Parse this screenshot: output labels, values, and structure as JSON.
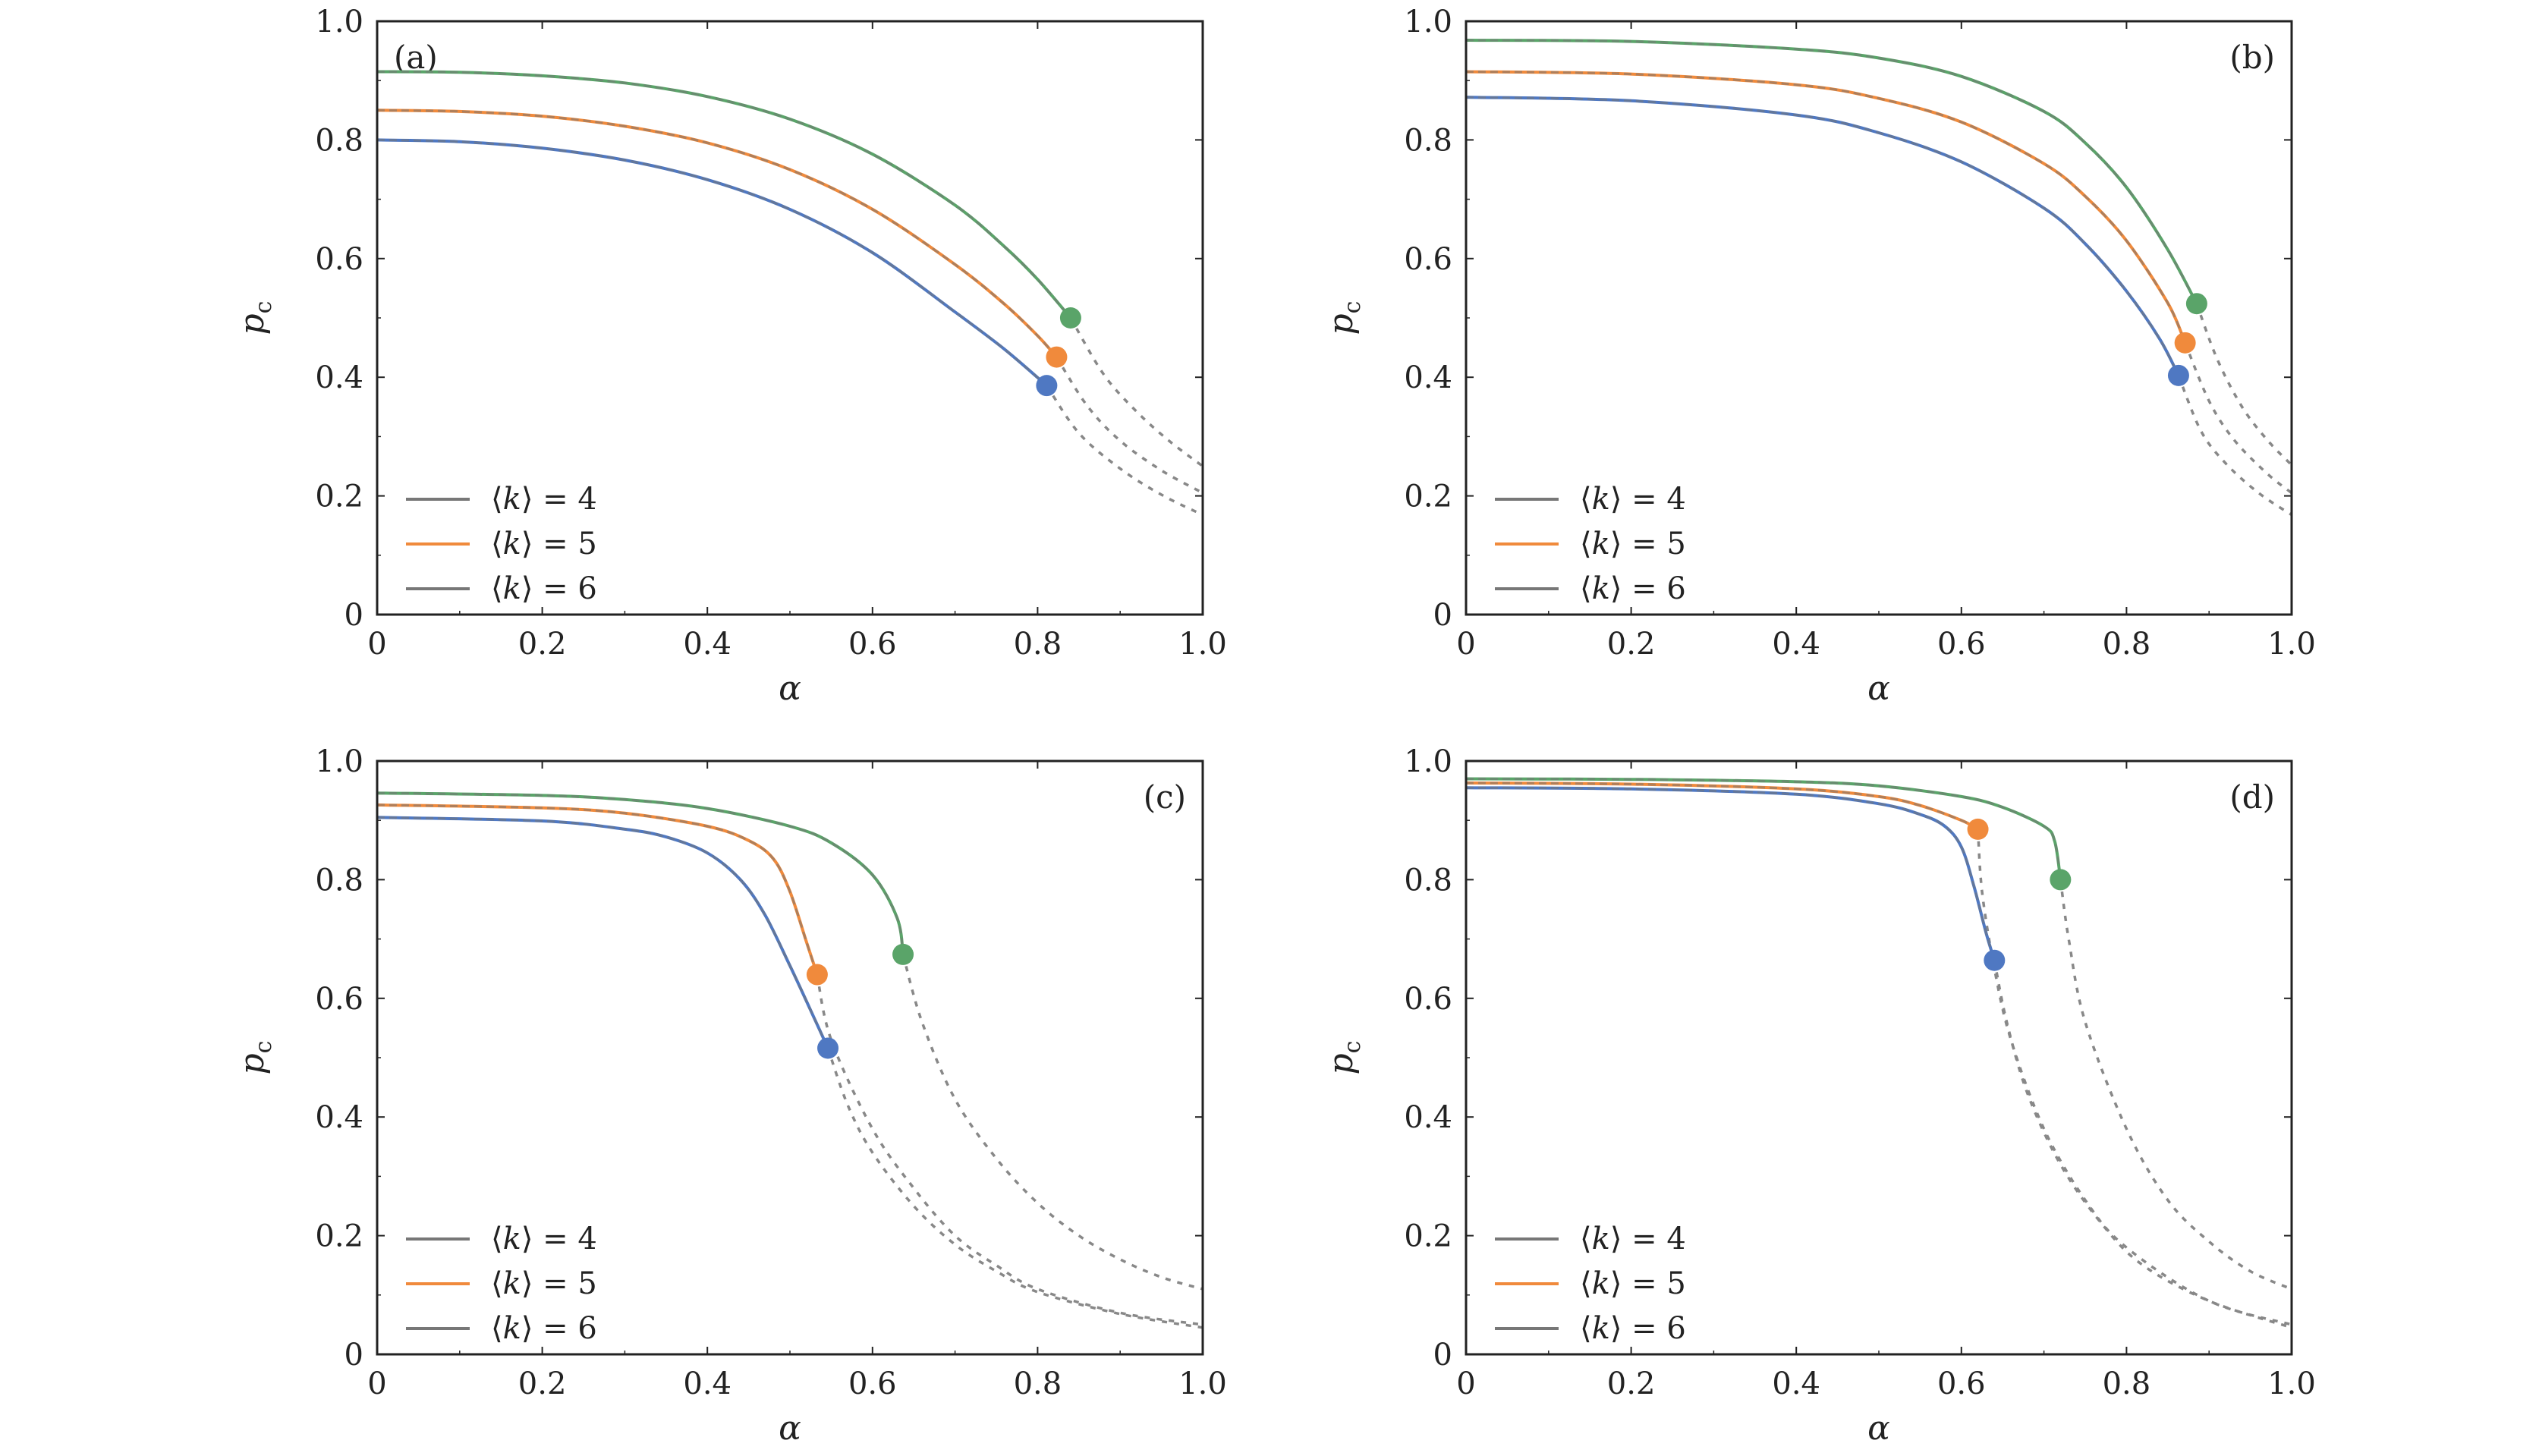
{
  "figure": {
    "legend_entries": [
      "⟨k⟩ = 4",
      "⟨k⟩ = 5",
      "⟨k⟩ = 6"
    ],
    "series_colors": {
      "k4": "#5aa469",
      "k5": "#f08a3c",
      "k6": "#4f78c2"
    },
    "line_color": "#777777",
    "dashed_color": "#888888"
  },
  "chart_data": [
    {
      "panel": "(a)",
      "type": "line",
      "xlabel": "α",
      "ylabel": "p_c",
      "xlim": [
        0,
        1
      ],
      "ylim": [
        0,
        1
      ],
      "x_ticks": [
        "0",
        "0.2",
        "0.4",
        "0.6",
        "0.8",
        "1.0"
      ],
      "y_ticks": [
        "0",
        "0.2",
        "0.4",
        "0.6",
        "0.8",
        "1.0"
      ],
      "legend_position": "bottom-left",
      "grid": false,
      "series": [
        {
          "name": "⟨k⟩ = 4",
          "color": "green",
          "solid": [
            [
              0,
              0.915
            ],
            [
              0.1,
              0.914
            ],
            [
              0.2,
              0.908
            ],
            [
              0.3,
              0.896
            ],
            [
              0.4,
              0.873
            ],
            [
              0.5,
              0.835
            ],
            [
              0.6,
              0.776
            ],
            [
              0.7,
              0.69
            ],
            [
              0.76,
              0.62
            ],
            [
              0.8,
              0.565
            ],
            [
              0.84,
              0.5
            ]
          ],
          "critical_point": [
            0.84,
            0.5
          ],
          "dashed": [
            [
              0.84,
              0.5
            ],
            [
              0.88,
              0.405
            ],
            [
              0.92,
              0.342
            ],
            [
              0.96,
              0.292
            ],
            [
              1.0,
              0.25
            ]
          ]
        },
        {
          "name": "⟨k⟩ = 5",
          "color": "orange",
          "solid": [
            [
              0,
              0.85
            ],
            [
              0.1,
              0.848
            ],
            [
              0.2,
              0.84
            ],
            [
              0.3,
              0.823
            ],
            [
              0.4,
              0.795
            ],
            [
              0.5,
              0.75
            ],
            [
              0.6,
              0.683
            ],
            [
              0.7,
              0.59
            ],
            [
              0.76,
              0.523
            ],
            [
              0.8,
              0.47
            ],
            [
              0.823,
              0.434
            ]
          ],
          "critical_point": [
            0.823,
            0.434
          ],
          "dashed": [
            [
              0.823,
              0.434
            ],
            [
              0.86,
              0.352
            ],
            [
              0.9,
              0.293
            ],
            [
              0.95,
              0.243
            ],
            [
              1.0,
              0.205
            ]
          ]
        },
        {
          "name": "⟨k⟩ = 6",
          "color": "blue",
          "solid": [
            [
              0,
              0.8
            ],
            [
              0.1,
              0.797
            ],
            [
              0.2,
              0.786
            ],
            [
              0.3,
              0.766
            ],
            [
              0.4,
              0.733
            ],
            [
              0.5,
              0.683
            ],
            [
              0.6,
              0.61
            ],
            [
              0.7,
              0.51
            ],
            [
              0.76,
              0.447
            ],
            [
              0.811,
              0.386
            ]
          ],
          "critical_point": [
            0.811,
            0.386
          ],
          "dashed": [
            [
              0.811,
              0.386
            ],
            [
              0.85,
              0.306
            ],
            [
              0.9,
              0.246
            ],
            [
              0.95,
              0.202
            ],
            [
              1.0,
              0.168
            ]
          ]
        }
      ]
    },
    {
      "panel": "(b)",
      "type": "line",
      "xlabel": "α",
      "ylabel": "p_c",
      "xlim": [
        0,
        1
      ],
      "ylim": [
        0,
        1
      ],
      "x_ticks": [
        "0",
        "0.2",
        "0.4",
        "0.6",
        "0.8",
        "1.0"
      ],
      "y_ticks": [
        "0",
        "0.2",
        "0.4",
        "0.6",
        "0.8",
        "1.0"
      ],
      "legend_position": "bottom-left",
      "grid": false,
      "series": [
        {
          "name": "⟨k⟩ = 4",
          "color": "green",
          "solid": [
            [
              0,
              0.968
            ],
            [
              0.2,
              0.966
            ],
            [
              0.4,
              0.953
            ],
            [
              0.5,
              0.938
            ],
            [
              0.6,
              0.907
            ],
            [
              0.7,
              0.848
            ],
            [
              0.75,
              0.795
            ],
            [
              0.8,
              0.72
            ],
            [
              0.85,
              0.615
            ],
            [
              0.885,
              0.524
            ]
          ],
          "critical_point": [
            0.885,
            0.524
          ],
          "dashed": [
            [
              0.885,
              0.524
            ],
            [
              0.91,
              0.43
            ],
            [
              0.94,
              0.35
            ],
            [
              0.97,
              0.295
            ],
            [
              1.0,
              0.252
            ]
          ]
        },
        {
          "name": "⟨k⟩ = 5",
          "color": "orange",
          "solid": [
            [
              0,
              0.915
            ],
            [
              0.2,
              0.911
            ],
            [
              0.4,
              0.893
            ],
            [
              0.5,
              0.87
            ],
            [
              0.6,
              0.83
            ],
            [
              0.7,
              0.76
            ],
            [
              0.75,
              0.705
            ],
            [
              0.8,
              0.63
            ],
            [
              0.85,
              0.525
            ],
            [
              0.871,
              0.458
            ]
          ],
          "critical_point": [
            0.871,
            0.458
          ],
          "dashed": [
            [
              0.871,
              0.458
            ],
            [
              0.9,
              0.36
            ],
            [
              0.93,
              0.295
            ],
            [
              0.97,
              0.238
            ],
            [
              1.0,
              0.205
            ]
          ]
        },
        {
          "name": "⟨k⟩ = 6",
          "color": "blue",
          "solid": [
            [
              0,
              0.872
            ],
            [
              0.2,
              0.866
            ],
            [
              0.4,
              0.842
            ],
            [
              0.5,
              0.812
            ],
            [
              0.6,
              0.763
            ],
            [
              0.7,
              0.685
            ],
            [
              0.75,
              0.625
            ],
            [
              0.8,
              0.545
            ],
            [
              0.84,
              0.465
            ],
            [
              0.863,
              0.403
            ]
          ],
          "critical_point": [
            0.863,
            0.403
          ],
          "dashed": [
            [
              0.863,
              0.403
            ],
            [
              0.89,
              0.31
            ],
            [
              0.92,
              0.255
            ],
            [
              0.96,
              0.205
            ],
            [
              1.0,
              0.168
            ]
          ]
        }
      ]
    },
    {
      "panel": "(c)",
      "type": "line",
      "xlabel": "α",
      "ylabel": "p_c",
      "xlim": [
        0,
        1
      ],
      "ylim": [
        0,
        1
      ],
      "x_ticks": [
        "0",
        "0.2",
        "0.4",
        "0.6",
        "0.8",
        "1.0"
      ],
      "y_ticks": [
        "0",
        "0.2",
        "0.4",
        "0.6",
        "0.8",
        "1.0"
      ],
      "legend_position": "bottom-left",
      "grid": false,
      "series": [
        {
          "name": "⟨k⟩ = 4",
          "color": "green",
          "solid": [
            [
              0,
              0.946
            ],
            [
              0.2,
              0.942
            ],
            [
              0.3,
              0.935
            ],
            [
              0.4,
              0.92
            ],
            [
              0.5,
              0.89
            ],
            [
              0.55,
              0.862
            ],
            [
              0.6,
              0.808
            ],
            [
              0.63,
              0.735
            ],
            [
              0.637,
              0.674
            ]
          ],
          "critical_point": [
            0.637,
            0.674
          ],
          "dashed": [
            [
              0.637,
              0.674
            ],
            [
              0.66,
              0.56
            ],
            [
              0.7,
              0.43
            ],
            [
              0.75,
              0.33
            ],
            [
              0.8,
              0.255
            ],
            [
              0.85,
              0.2
            ],
            [
              0.9,
              0.16
            ],
            [
              0.95,
              0.13
            ],
            [
              1.0,
              0.11
            ]
          ]
        },
        {
          "name": "⟨k⟩ = 5",
          "color": "orange",
          "solid": [
            [
              0,
              0.926
            ],
            [
              0.2,
              0.921
            ],
            [
              0.3,
              0.912
            ],
            [
              0.4,
              0.89
            ],
            [
              0.45,
              0.866
            ],
            [
              0.48,
              0.835
            ],
            [
              0.5,
              0.78
            ],
            [
              0.52,
              0.695
            ],
            [
              0.533,
              0.64
            ]
          ],
          "critical_point": [
            0.533,
            0.64
          ],
          "dashed": [
            [
              0.533,
              0.64
            ],
            [
              0.55,
              0.53
            ],
            [
              0.6,
              0.38
            ],
            [
              0.65,
              0.28
            ],
            [
              0.7,
              0.2
            ],
            [
              0.75,
              0.15
            ],
            [
              0.8,
              0.11
            ],
            [
              0.9,
              0.07
            ],
            [
              1.0,
              0.05
            ]
          ]
        },
        {
          "name": "⟨k⟩ = 6",
          "color": "blue",
          "solid": [
            [
              0,
              0.905
            ],
            [
              0.2,
              0.899
            ],
            [
              0.3,
              0.885
            ],
            [
              0.35,
              0.872
            ],
            [
              0.4,
              0.845
            ],
            [
              0.44,
              0.8
            ],
            [
              0.47,
              0.74
            ],
            [
              0.5,
              0.655
            ],
            [
              0.53,
              0.565
            ],
            [
              0.546,
              0.516
            ]
          ],
          "critical_point": [
            0.546,
            0.516
          ],
          "dashed": [
            [
              0.546,
              0.516
            ],
            [
              0.57,
              0.42
            ],
            [
              0.6,
              0.34
            ],
            [
              0.65,
              0.25
            ],
            [
              0.7,
              0.185
            ],
            [
              0.75,
              0.14
            ],
            [
              0.8,
              0.105
            ],
            [
              0.9,
              0.068
            ],
            [
              1.0,
              0.045
            ]
          ]
        }
      ]
    },
    {
      "panel": "(d)",
      "type": "line",
      "xlabel": "α",
      "ylabel": "p_c",
      "xlim": [
        0,
        1
      ],
      "ylim": [
        0,
        1
      ],
      "x_ticks": [
        "0",
        "0.2",
        "0.4",
        "0.6",
        "0.8",
        "1.0"
      ],
      "y_ticks": [
        "0",
        "0.2",
        "0.4",
        "0.6",
        "0.8",
        "1.0"
      ],
      "legend_position": "bottom-left",
      "grid": false,
      "series": [
        {
          "name": "⟨k⟩ = 4",
          "color": "green",
          "solid": [
            [
              0,
              0.97
            ],
            [
              0.2,
              0.969
            ],
            [
              0.4,
              0.965
            ],
            [
              0.5,
              0.958
            ],
            [
              0.6,
              0.94
            ],
            [
              0.65,
              0.922
            ],
            [
              0.7,
              0.89
            ],
            [
              0.713,
              0.865
            ],
            [
              0.72,
              0.8
            ]
          ],
          "critical_point": [
            0.72,
            0.8
          ],
          "dashed": [
            [
              0.72,
              0.8
            ],
            [
              0.73,
              0.7
            ],
            [
              0.75,
              0.56
            ],
            [
              0.8,
              0.38
            ],
            [
              0.85,
              0.26
            ],
            [
              0.9,
              0.19
            ],
            [
              0.95,
              0.14
            ],
            [
              1.0,
              0.11
            ]
          ]
        },
        {
          "name": "⟨k⟩ = 5",
          "color": "orange",
          "solid": [
            [
              0,
              0.963
            ],
            [
              0.2,
              0.961
            ],
            [
              0.4,
              0.953
            ],
            [
              0.5,
              0.94
            ],
            [
              0.55,
              0.925
            ],
            [
              0.6,
              0.9
            ],
            [
              0.62,
              0.885
            ]
          ],
          "critical_point": [
            0.62,
            0.885
          ],
          "dashed": [
            [
              0.62,
              0.885
            ],
            [
              0.625,
              0.78
            ],
            [
              0.64,
              0.65
            ],
            [
              0.66,
              0.53
            ],
            [
              0.7,
              0.38
            ],
            [
              0.75,
              0.26
            ],
            [
              0.8,
              0.18
            ],
            [
              0.9,
              0.09
            ],
            [
              1.0,
              0.05
            ]
          ]
        },
        {
          "name": "⟨k⟩ = 6",
          "color": "blue",
          "solid": [
            [
              0,
              0.955
            ],
            [
              0.2,
              0.953
            ],
            [
              0.4,
              0.944
            ],
            [
              0.5,
              0.928
            ],
            [
              0.55,
              0.91
            ],
            [
              0.58,
              0.89
            ],
            [
              0.6,
              0.855
            ],
            [
              0.615,
              0.79
            ],
            [
              0.63,
              0.71
            ],
            [
              0.64,
              0.664
            ]
          ],
          "critical_point": [
            0.64,
            0.664
          ],
          "dashed": [
            [
              0.64,
              0.664
            ],
            [
              0.655,
              0.56
            ],
            [
              0.68,
              0.44
            ],
            [
              0.72,
              0.32
            ],
            [
              0.77,
              0.22
            ],
            [
              0.82,
              0.15
            ],
            [
              0.9,
              0.09
            ],
            [
              1.0,
              0.045
            ]
          ]
        }
      ]
    }
  ]
}
